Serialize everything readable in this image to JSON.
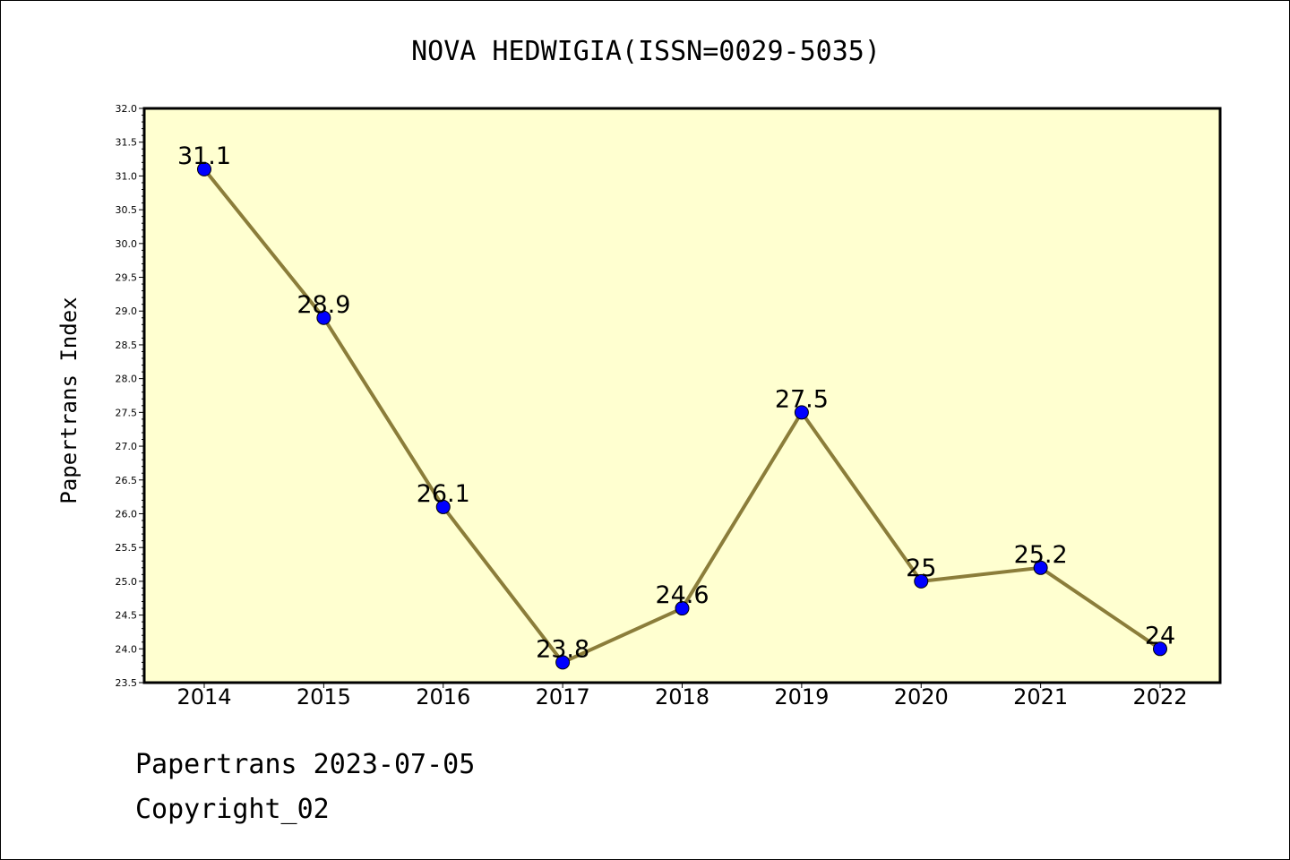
{
  "chart_data": {
    "type": "line",
    "title": "NOVA HEDWIGIA(ISSN=0029-5035)",
    "xlabel": "",
    "ylabel": "Papertrans Index",
    "x": [
      "2014",
      "2015",
      "2016",
      "2017",
      "2018",
      "2019",
      "2020",
      "2021",
      "2022"
    ],
    "series": [
      {
        "values": [
          31.1,
          28.9,
          26.1,
          23.8,
          24.6,
          27.5,
          25.0,
          25.2,
          24.0
        ]
      }
    ],
    "data_labels": [
      "31.1",
      "28.9",
      "26.1",
      "23.8",
      "24.6",
      "27.5",
      "25",
      "25.2",
      "24"
    ],
    "ylim": [
      23.5,
      32.0
    ],
    "yticks": [
      "23.5",
      "24.0",
      "24.5",
      "25.0",
      "25.5",
      "26.0",
      "26.5",
      "27.0",
      "27.5",
      "28.0",
      "28.5",
      "29.0",
      "29.5",
      "30.0",
      "30.5",
      "31.0",
      "31.5",
      "32.0"
    ],
    "grid": false,
    "colors": {
      "plot_bg": "#ffffd0",
      "line": "#8b7d3a",
      "marker": "#0000ff"
    }
  },
  "footer": {
    "line1": "Papertrans 2023-07-05",
    "line2": "Copyright_02"
  }
}
